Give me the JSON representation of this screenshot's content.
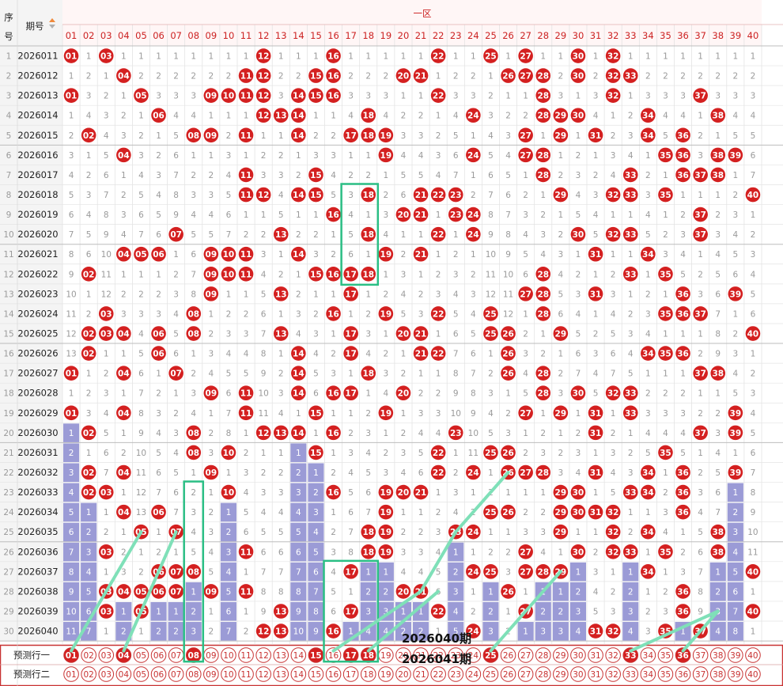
{
  "header": {
    "seq_label_1": "序",
    "seq_label_2": "号",
    "period_label": "期号",
    "zone_label": "一区",
    "predict_row_1": "预测行一",
    "predict_row_2": "预测行二"
  },
  "colors": {
    "ball": "#d42020",
    "bar": "#9b9bd6",
    "highlight_box": "#2bbf85",
    "trend_line": "#7fe0b8",
    "header_red": "#cc2222",
    "predict_border": "#c83232"
  },
  "chart_data": {
    "type": "table",
    "columns": [
      "01",
      "02",
      "03",
      "04",
      "05",
      "06",
      "07",
      "08",
      "09",
      "10",
      "11",
      "12",
      "13",
      "14",
      "15",
      "16",
      "17",
      "18",
      "19",
      "20",
      "21",
      "22",
      "23",
      "24",
      "25",
      "26",
      "27",
      "28",
      "29",
      "30",
      "31",
      "32",
      "33",
      "34",
      "35",
      "36",
      "37",
      "38",
      "39",
      "40"
    ],
    "periods": [
      "2026011",
      "2026012",
      "2026013",
      "2026014",
      "2026015",
      "2026016",
      "2026017",
      "2026018",
      "2026019",
      "2026020",
      "2026021",
      "2026022",
      "2026023",
      "2026024",
      "2026025",
      "2026026",
      "2026027",
      "2026028",
      "2026029",
      "2026030",
      "2026031",
      "2026032",
      "2026033",
      "2026034",
      "2026035",
      "2026036",
      "2026037",
      "2026038",
      "2026039",
      "2026040"
    ],
    "draws": [
      [
        1,
        3,
        12,
        16,
        22,
        25,
        27,
        30,
        32
      ],
      [
        4,
        11,
        12,
        15,
        16,
        20,
        21,
        26,
        27,
        28,
        30,
        32,
        33
      ],
      [
        1,
        5,
        9,
        10,
        11,
        12,
        14,
        15,
        16,
        22,
        28,
        32,
        37
      ],
      [
        6,
        12,
        13,
        14,
        18,
        24,
        28,
        29,
        30,
        34,
        38
      ],
      [
        2,
        8,
        9,
        11,
        14,
        17,
        18,
        19,
        27,
        29,
        31,
        34,
        36
      ],
      [
        4,
        19,
        24,
        27,
        28,
        35,
        36,
        38,
        39
      ],
      [
        11,
        15,
        28,
        33,
        36,
        37,
        38
      ],
      [
        11,
        12,
        14,
        15,
        18,
        21,
        22,
        23,
        29,
        32,
        33,
        35,
        40
      ],
      [
        16,
        20,
        21,
        23,
        24,
        37
      ],
      [
        7,
        13,
        18,
        22,
        24,
        30,
        32,
        33,
        37
      ],
      [
        4,
        5,
        6,
        9,
        10,
        11,
        14,
        19,
        21,
        31,
        34
      ],
      [
        2,
        9,
        10,
        11,
        15,
        16,
        17,
        18,
        28,
        33,
        35
      ],
      [
        9,
        13,
        17,
        27,
        28,
        31,
        36,
        39
      ],
      [
        3,
        8,
        16,
        19,
        22,
        25,
        28,
        35,
        36,
        37
      ],
      [
        2,
        3,
        4,
        6,
        8,
        13,
        17,
        20,
        21,
        25,
        26,
        29,
        40
      ],
      [
        2,
        6,
        14,
        17,
        21,
        22,
        26,
        34,
        35,
        36
      ],
      [
        1,
        4,
        7,
        14,
        18,
        26,
        28,
        37,
        38
      ],
      [
        9,
        11,
        14,
        16,
        17,
        20,
        28,
        30,
        32,
        33
      ],
      [
        1,
        4,
        11,
        15,
        19,
        27,
        29,
        31,
        33,
        39
      ],
      [
        2,
        8,
        12,
        13,
        14,
        16,
        23,
        31,
        37,
        39
      ],
      [
        8,
        10,
        15,
        22,
        25,
        26,
        35
      ],
      [
        2,
        4,
        9,
        22,
        24,
        26,
        27,
        28,
        31,
        34,
        36,
        39
      ],
      [
        2,
        3,
        10,
        16,
        19,
        20,
        21,
        29,
        30,
        33,
        34,
        36
      ],
      [
        4,
        6,
        19,
        25,
        26,
        29,
        30,
        31,
        32,
        36
      ],
      [
        5,
        7,
        18,
        19,
        23,
        24,
        29,
        32,
        34,
        38
      ],
      [
        3,
        11,
        18,
        19,
        27,
        30,
        32,
        33,
        35,
        38
      ],
      [
        6,
        7,
        8,
        17,
        24,
        25,
        27,
        28,
        29,
        34,
        40
      ],
      [
        3,
        4,
        5,
        6,
        7,
        9,
        11,
        20,
        21,
        26,
        36
      ],
      [
        3,
        5,
        13,
        17,
        22,
        27,
        36,
        40
      ],
      [
        12,
        13,
        16,
        24,
        31,
        32,
        35,
        37
      ]
    ],
    "bar_columns": [
      "01",
      "02",
      "04",
      "06",
      "07",
      "08",
      "10",
      "14",
      "15",
      "17",
      "18",
      "19",
      "20",
      "21",
      "23",
      "25",
      "27",
      "28",
      "29",
      "30",
      "33",
      "36",
      "37",
      "38",
      "39"
    ],
    "prediction_row_1": [
      1,
      4,
      8,
      15,
      17,
      18,
      25,
      33,
      36
    ],
    "prediction_row_2": [],
    "annotations": [
      "2026040期",
      "2026041期"
    ]
  }
}
